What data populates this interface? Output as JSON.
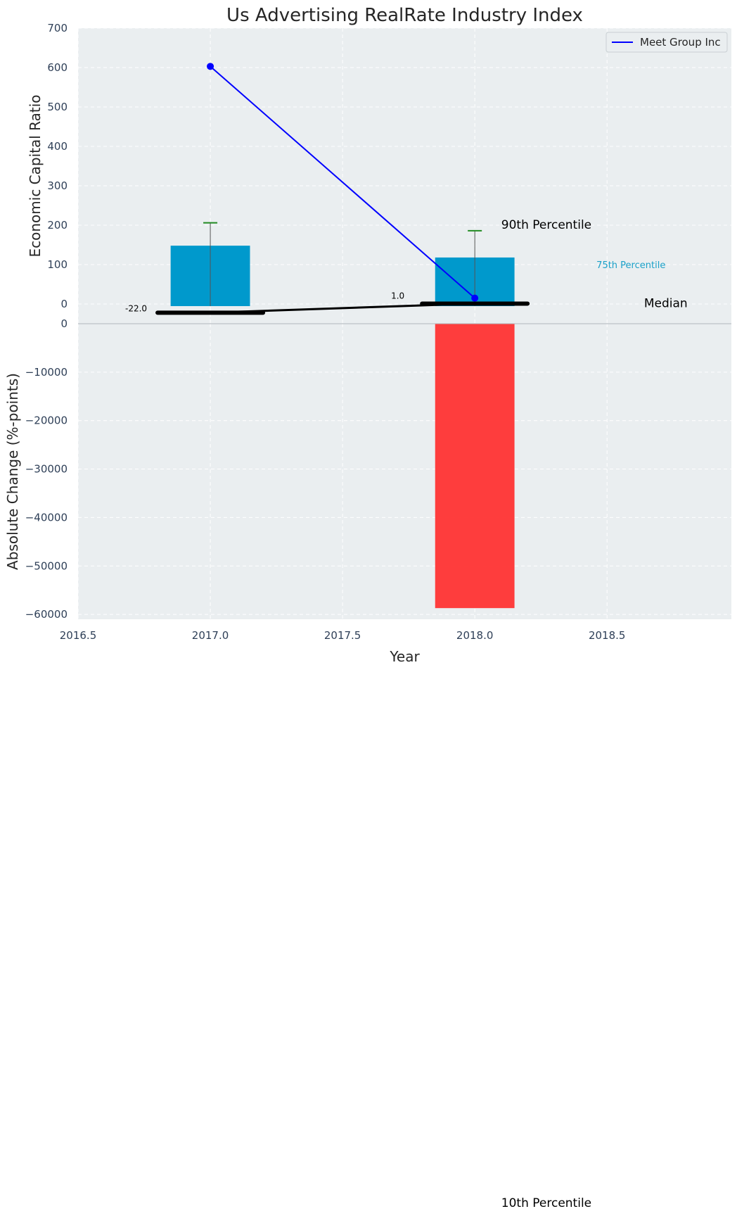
{
  "chart_data": [
    {
      "type": "bar",
      "title": "Us Advertising RealRate Industry Index",
      "xlabel": "",
      "ylabel": "Economic Capital Ratio",
      "ylim": [
        -50,
        700
      ],
      "yticks": [
        0,
        100,
        200,
        300,
        400,
        500,
        600,
        700
      ],
      "grid": true,
      "legend": {
        "position": "top-right",
        "entries": [
          "Meet Group Inc"
        ]
      },
      "bar_color": "#0099cc",
      "bars": {
        "x": [
          2017.0,
          2018.0
        ],
        "values": [
          148,
          118
        ]
      },
      "error_bar_tops": {
        "x": [
          2017.0,
          2018.0
        ],
        "values": [
          206,
          186
        ]
      },
      "median_line": {
        "x": [
          2017.0,
          2018.0
        ],
        "values": [
          -22.0,
          1.0
        ],
        "labels": [
          "-22.0",
          "1.0"
        ]
      },
      "series": [
        {
          "name": "Meet Group Inc",
          "color": "#0000ff",
          "x": [
            2017.0,
            2018.0
          ],
          "values": [
            603,
            15
          ]
        }
      ],
      "annotations": [
        {
          "text": "90th Percentile",
          "x": 2018.1,
          "y": 200,
          "color": "#000000"
        },
        {
          "text": "75th Percentile",
          "x": 2018.46,
          "y": 100,
          "color": "#1aa0c8"
        },
        {
          "text": "Median",
          "x": 2018.64,
          "y": 1,
          "color": "#000000"
        }
      ]
    },
    {
      "type": "bar",
      "xlabel": "Year",
      "ylabel": "Absolute Change (%-points)",
      "xlim": [
        2016.5,
        2018.97
      ],
      "xticks": [
        2016.5,
        2017.0,
        2017.5,
        2018.0,
        2018.5
      ],
      "xtick_labels": [
        "2016.5",
        "2017.0",
        "2017.5",
        "2018.0",
        "2018.5"
      ],
      "ylim": [
        -61000,
        0
      ],
      "yticks": [
        0,
        -10000,
        -20000,
        -30000,
        -40000,
        -50000,
        -60000
      ],
      "ytick_labels": [
        "0",
        "−10000",
        "−20000",
        "−30000",
        "−40000",
        "−50000",
        "−60000"
      ],
      "grid": true,
      "bar_color": "#ff3333",
      "bars": {
        "x": [
          2018.0
        ],
        "values": [
          -58700
        ]
      },
      "annotations": [
        {
          "text": "10th Percentile",
          "x": 2018.1,
          "y": -184000,
          "color": "#000000"
        }
      ]
    }
  ]
}
